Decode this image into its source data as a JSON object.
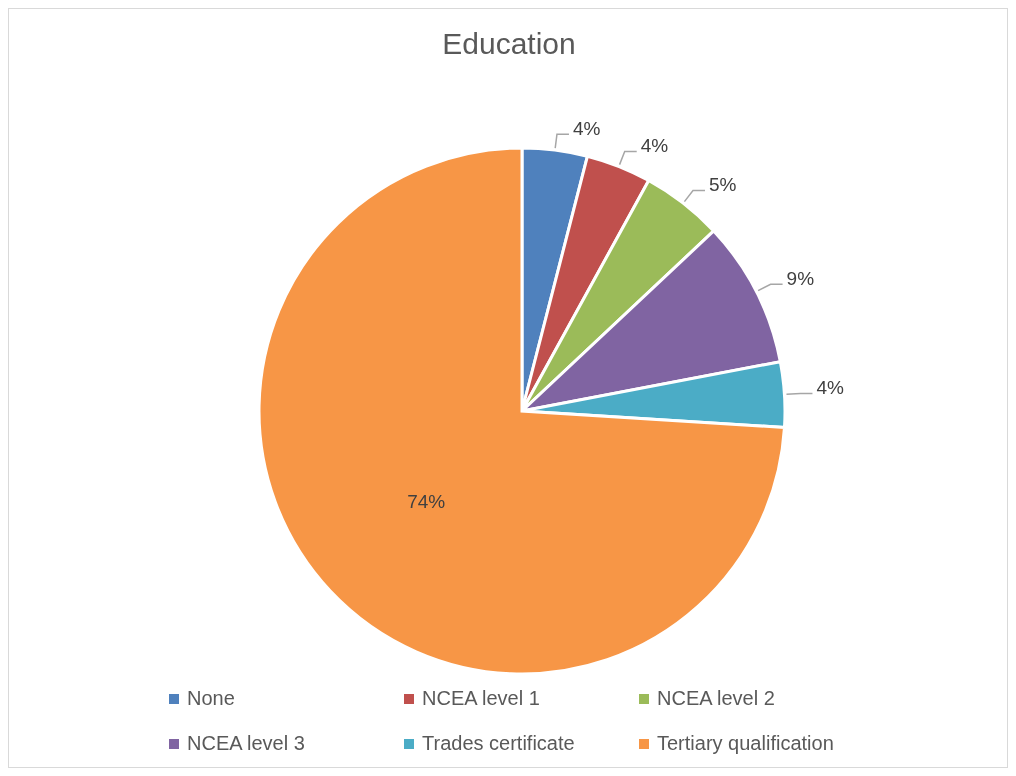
{
  "chart_data": {
    "type": "pie",
    "title": "Education",
    "categories": [
      "None",
      "NCEA level 1",
      "NCEA level 2",
      "NCEA level 3",
      "Trades certificate",
      "Tertiary qualification"
    ],
    "values": [
      4,
      4,
      5,
      9,
      4,
      74
    ],
    "value_labels": [
      "4%",
      "4%",
      "5%",
      "9%",
      "4%",
      "74%"
    ],
    "colors": [
      "#4f81bd",
      "#c0504d",
      "#9bbb59",
      "#8064a2",
      "#4bacc6",
      "#f79646"
    ],
    "legend": "bottom"
  }
}
